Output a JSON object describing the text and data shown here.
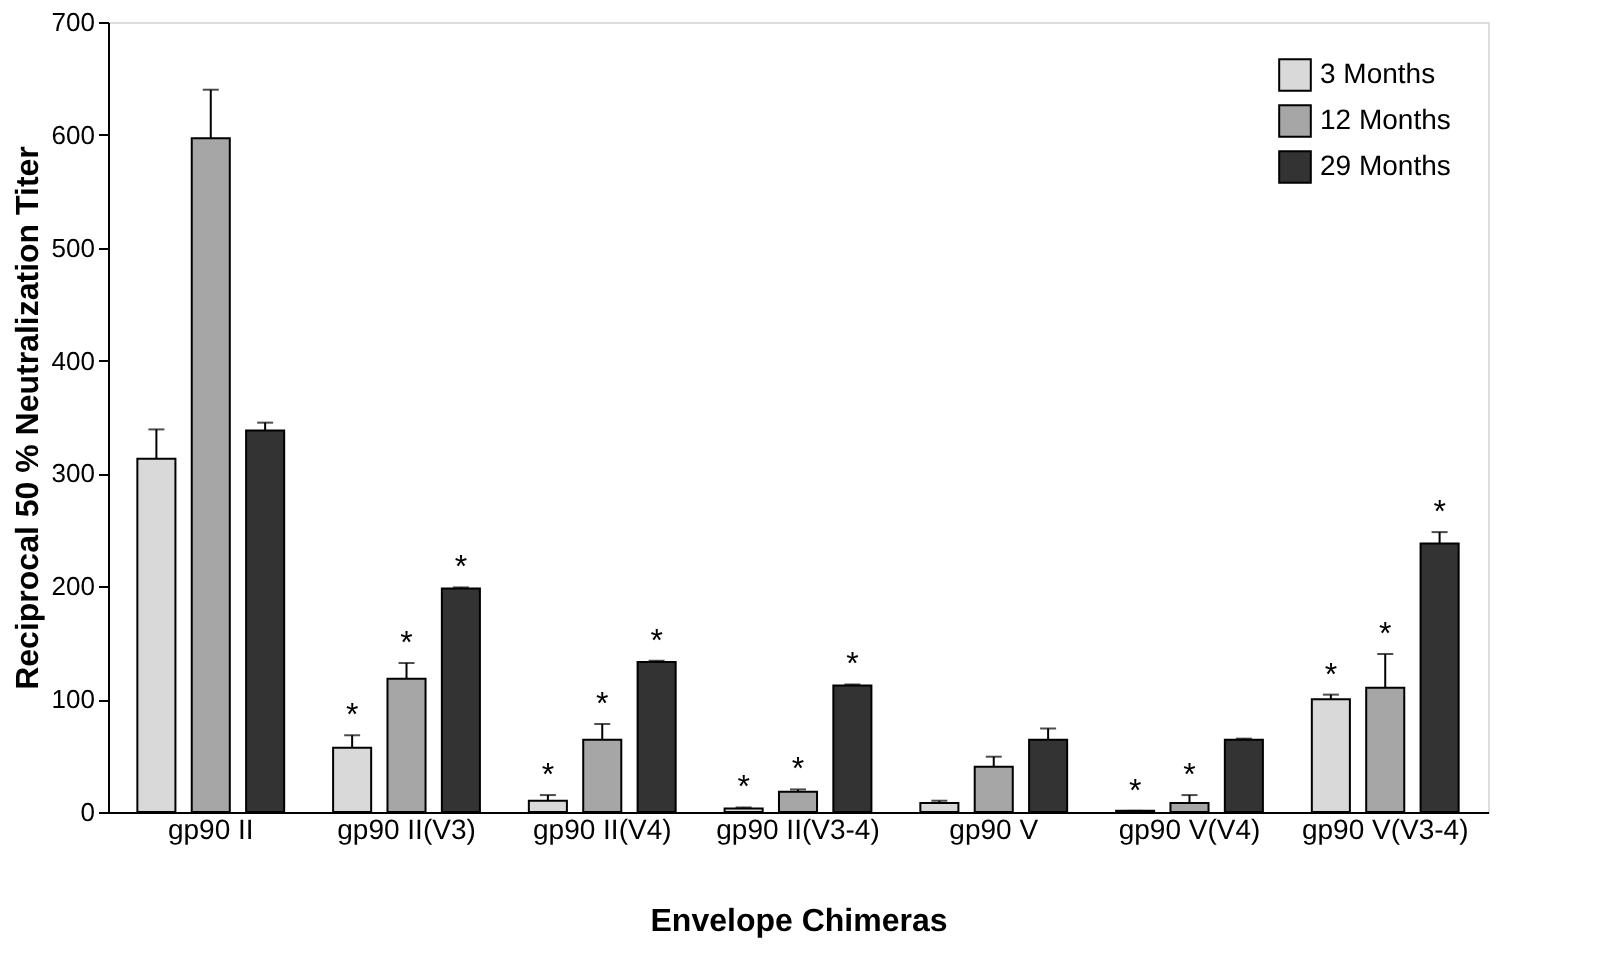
{
  "chart_data": {
    "type": "bar",
    "xlabel": "Envelope Chimeras",
    "ylabel": "Reciprocal 50 % Neutralization Titer",
    "categories": [
      "gp90 II",
      "gp90 II(V3)",
      "gp90 II(V4)",
      "gp90 II(V3-4)",
      "gp90 V",
      "gp90 V(V4)",
      "gp90 V(V3-4)"
    ],
    "series": [
      {
        "name": "3 Months",
        "color": "#d9d9d9",
        "values": [
          313,
          57,
          10,
          3,
          8,
          1,
          100
        ],
        "errors": [
          26,
          11,
          5,
          1,
          2,
          0,
          4
        ],
        "value_labels": [
          null,
          "*",
          "*",
          "*",
          null,
          "*",
          "*"
        ]
      },
      {
        "name": "12 Months",
        "color": "#a6a6a6",
        "values": [
          597,
          118,
          64,
          18,
          40,
          8,
          110
        ],
        "errors": [
          43,
          14,
          14,
          2,
          9,
          7,
          30
        ],
        "value_labels": [
          null,
          "*",
          "*",
          "*",
          null,
          "*",
          "*"
        ]
      },
      {
        "name": "29 Months",
        "color": "#333333",
        "values": [
          338,
          198,
          133,
          112,
          64,
          64,
          238
        ],
        "errors": [
          7,
          1,
          1,
          1,
          10,
          1,
          10
        ],
        "value_labels": [
          null,
          "*",
          "*",
          "*",
          null,
          null,
          "*"
        ]
      }
    ],
    "ylim": [
      0,
      700
    ],
    "yticks": [
      0,
      100,
      200,
      300,
      400,
      500,
      600,
      700
    ],
    "grid": false,
    "legend": "top right"
  }
}
